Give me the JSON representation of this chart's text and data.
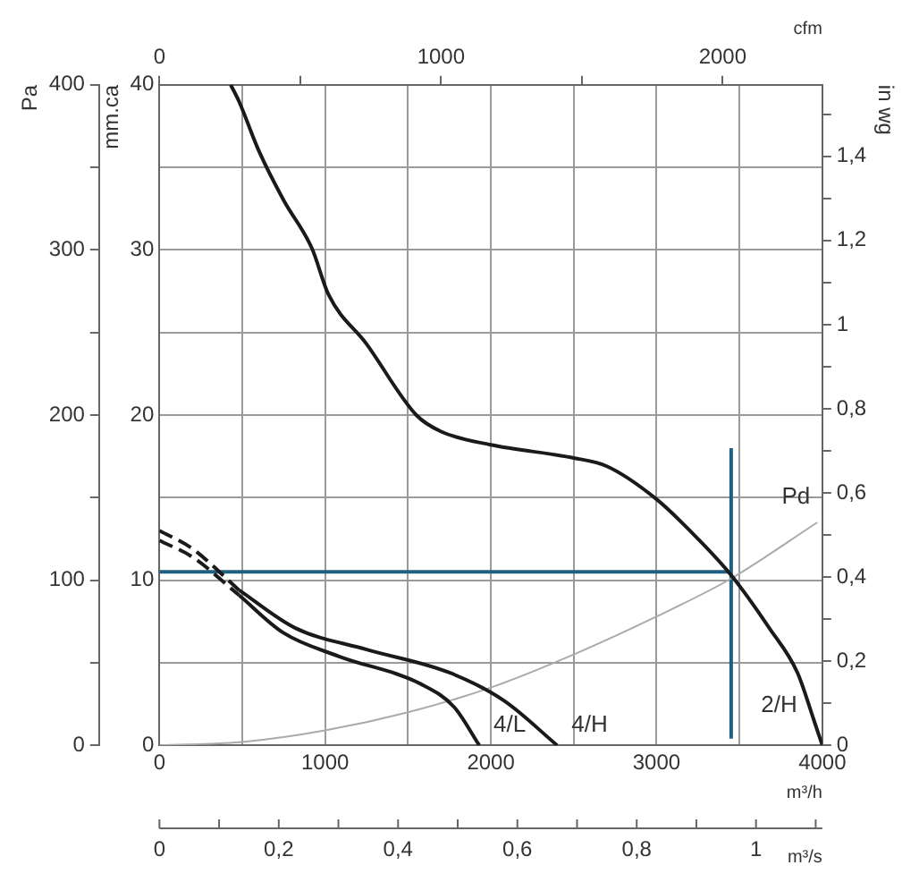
{
  "chart_data": {
    "type": "line",
    "xlabel": "m³/h",
    "ylabel": "mm.ca",
    "y2label": "Pa",
    "y3label": "in wg",
    "x2label": "cfm",
    "xlim": [
      0,
      4000
    ],
    "xticks": [
      0,
      {
        "value": 500,
        "label": null
      },
      1000,
      {
        "value": 1500,
        "label": null
      },
      2000,
      {
        "value": 2500,
        "label": null
      },
      3000,
      {
        "value": 3500,
        "label": null
      },
      4000
    ],
    "ylim": [
      0,
      40
    ],
    "yticks": [
      0,
      {
        "value": 5,
        "label": null
      },
      10,
      {
        "value": 15,
        "label": null
      },
      20,
      {
        "value": 25,
        "label": null
      },
      30,
      {
        "value": 35,
        "label": null
      },
      40
    ],
    "y2lim": [
      0,
      400
    ],
    "y2ticks": [
      0,
      {
        "value": 50,
        "label": null
      },
      100,
      {
        "value": 150,
        "label": null
      },
      200,
      {
        "value": 250,
        "label": null
      },
      300,
      {
        "value": 350,
        "label": null
      },
      400
    ],
    "y3lim": [
      0,
      1.57
    ],
    "y3ticks": [
      0,
      {
        "value": 0.1,
        "label": null
      },
      {
        "value": 0.2,
        "label": "0,2"
      },
      {
        "value": 0.3,
        "label": null
      },
      {
        "value": 0.4,
        "label": "0,4"
      },
      {
        "value": 0.5,
        "label": null
      },
      {
        "value": 0.6,
        "label": "0,6"
      },
      {
        "value": 0.7,
        "label": null
      },
      {
        "value": 0.8,
        "label": "0,8"
      },
      {
        "value": 0.9,
        "label": null
      },
      {
        "value": 1,
        "label": "1"
      },
      {
        "value": 1.1,
        "label": null
      },
      {
        "value": 1.2,
        "label": "1,2"
      },
      {
        "value": 1.3,
        "label": null
      },
      {
        "value": 1.4,
        "label": "1,4"
      },
      {
        "value": 1.5,
        "label": null
      }
    ],
    "x2lim": [
      0,
      2354
    ],
    "x2ticks": [
      0,
      {
        "value": 500,
        "label": null
      },
      1000,
      {
        "value": 1500,
        "label": null
      },
      2000
    ],
    "grid": true,
    "legend": false,
    "marker": "none",
    "series": [
      {
        "type": "line",
        "name": "2/H",
        "color": "#1a1a1a",
        "line_style": "solid",
        "x": [
          430,
          480,
          600,
          750,
          920,
          1020,
          1250,
          1550,
          1700,
          2000,
          2500,
          2700,
          3000,
          3250,
          3450,
          3680,
          3850,
          3950,
          4000
        ],
        "values": [
          40,
          39,
          36,
          33,
          30.1,
          27.3,
          24.3,
          20,
          19,
          18.2,
          17.4,
          16.9,
          14.9,
          12.5,
          10.3,
          7.1,
          4.4,
          1.5,
          0
        ]
      },
      {
        "type": "line",
        "color": "#1a1a1a",
        "line_style": "dashed",
        "x": [
          0,
          200,
          480
        ],
        "values": [
          13,
          11.9,
          9.4
        ]
      },
      {
        "type": "line",
        "name": "4/H",
        "color": "#1a1a1a",
        "line_style": "solid",
        "x": [
          480,
          820,
          1250,
          1750,
          2080,
          2400
        ],
        "values": [
          9.4,
          7.1,
          5.8,
          4.4,
          2.7,
          0
        ]
      },
      {
        "type": "line",
        "color": "#1a1a1a",
        "line_style": "dashed",
        "x": [
          0,
          200,
          480
        ],
        "values": [
          12.4,
          11.4,
          9.1
        ]
      },
      {
        "type": "line",
        "name": "4/L",
        "color": "#1a1a1a",
        "line_style": "solid",
        "x": [
          480,
          750,
          1080,
          1580,
          1780,
          1930
        ],
        "values": [
          9.1,
          6.8,
          5.4,
          3.7,
          2.3,
          0
        ]
      },
      {
        "type": "line",
        "name": "Pd",
        "color": "#aaaaaa",
        "line_style": "solid",
        "x": [
          0,
          500,
          1000,
          1500,
          2000,
          2500,
          3000,
          3450,
          3970
        ],
        "values": [
          0,
          0.2,
          0.9,
          2,
          3.5,
          5.5,
          7.8,
          10.1,
          13.5
        ]
      },
      {
        "type": "line",
        "color": "#1f6080",
        "line_style": "solid",
        "x": [
          0,
          3450
        ],
        "values": [
          10.5,
          10.5
        ]
      },
      {
        "type": "line",
        "color": "#1f6080",
        "line_style": "solid",
        "x": [
          3450,
          3450
        ],
        "values": [
          0.4,
          18
        ]
      }
    ],
    "annotations": [
      "m³/s",
      "0",
      "0,2",
      "0,4",
      "0,6",
      "0,8",
      "1"
    ]
  }
}
